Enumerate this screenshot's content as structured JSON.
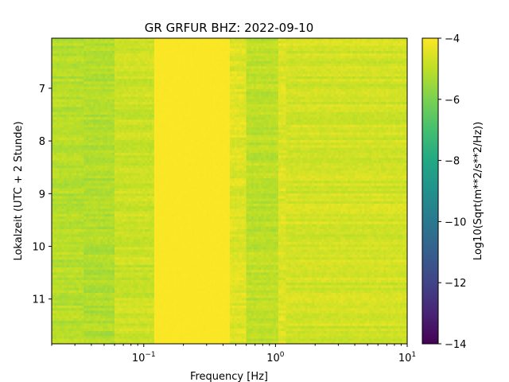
{
  "chart_data": {
    "type": "heatmap",
    "title": "GR GRFUR  BHZ: 2022-09-10",
    "xlabel": "Frequency [Hz]",
    "ylabel": "Lokalzeit (UTC + 2 Stunde)",
    "x_scale": "log",
    "xlim": [
      0.02,
      10
    ],
    "ylim": [
      6.05,
      11.85
    ],
    "y_inverted": true,
    "x_ticks": [
      {
        "value": 0.1,
        "base": "10",
        "exp": "−1"
      },
      {
        "value": 1,
        "base": "10",
        "exp": "0"
      },
      {
        "value": 10,
        "base": "10",
        "exp": "1"
      }
    ],
    "y_ticks": [
      {
        "value": 7,
        "label": "7"
      },
      {
        "value": 8,
        "label": "8"
      },
      {
        "value": 9,
        "label": "9"
      },
      {
        "value": 10,
        "label": "10"
      },
      {
        "value": 11,
        "label": "11"
      }
    ],
    "colorbar": {
      "label": "Log10(Sqrt(m**2/s**2/Hz))",
      "colormap": "viridis",
      "vmin": -14,
      "vmax": -4,
      "ticks": [
        {
          "value": -4,
          "label": "−4"
        },
        {
          "value": -6,
          "label": "−6"
        },
        {
          "value": -8,
          "label": "−8"
        },
        {
          "value": -10,
          "label": "−10"
        },
        {
          "value": -12,
          "label": "−12"
        },
        {
          "value": -14,
          "label": "−14"
        }
      ]
    },
    "frequency_bands": [
      {
        "f_min": 0.02,
        "f_max": 0.035,
        "level": -5.1
      },
      {
        "f_min": 0.035,
        "f_max": 0.06,
        "level": -5.2
      },
      {
        "f_min": 0.06,
        "f_max": 0.12,
        "level": -4.8
      },
      {
        "f_min": 0.12,
        "f_max": 0.45,
        "level": -4.05
      },
      {
        "f_min": 0.45,
        "f_max": 0.6,
        "level": -4.5
      },
      {
        "f_min": 0.6,
        "f_max": 1.05,
        "level": -5.0
      },
      {
        "f_min": 1.05,
        "f_max": 1.2,
        "level": -4.5
      },
      {
        "f_min": 1.2,
        "f_max": 10,
        "level": -4.7
      }
    ]
  }
}
